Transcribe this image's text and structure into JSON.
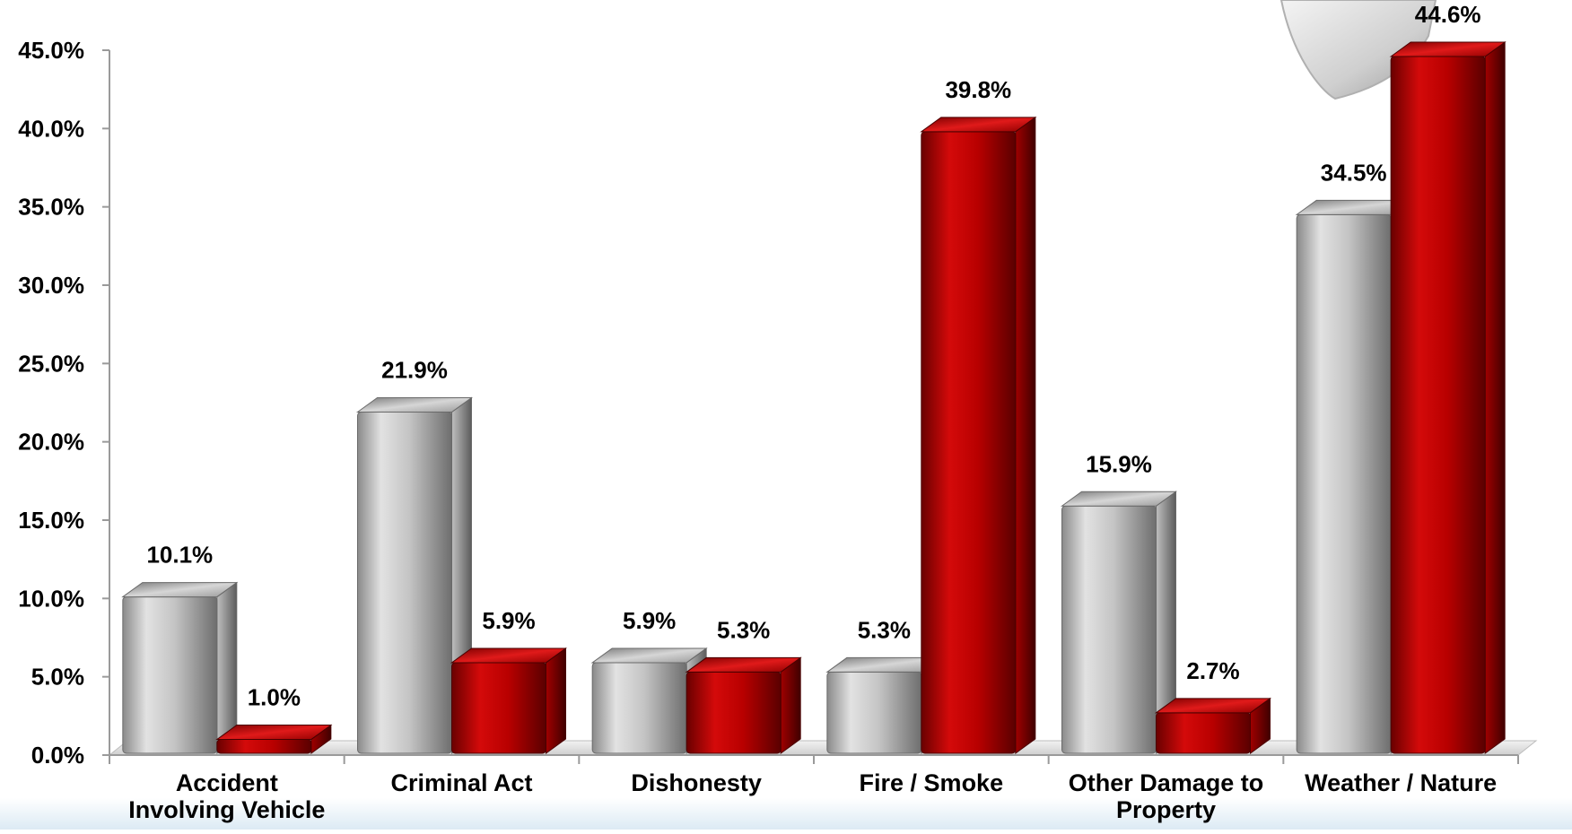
{
  "chart_data": {
    "type": "bar",
    "title": "",
    "xlabel": "",
    "ylabel": "",
    "ylim": [
      0,
      45
    ],
    "yticks": [
      "0.0%",
      "5.0%",
      "10.0%",
      "15.0%",
      "20.0%",
      "25.0%",
      "30.0%",
      "35.0%",
      "40.0%",
      "45.0%"
    ],
    "categories": [
      [
        "Accident",
        "Involving Vehicle"
      ],
      [
        "Criminal Act"
      ],
      [
        "Dishonesty"
      ],
      [
        "Fire / Smoke"
      ],
      [
        "Other Damage to",
        "Property"
      ],
      [
        "Weather / Nature"
      ]
    ],
    "series": [
      {
        "color": "#a8a8a8",
        "style": "silver",
        "values": [
          10.1,
          21.9,
          5.9,
          5.3,
          15.9,
          34.5
        ],
        "labels": [
          "10.1%",
          "21.9%",
          "5.9%",
          "5.3%",
          "15.9%",
          "34.5%"
        ]
      },
      {
        "color": "#c00000",
        "style": "red",
        "values": [
          1.0,
          5.9,
          5.3,
          39.8,
          2.7,
          44.6
        ],
        "labels": [
          "1.0%",
          "5.9%",
          "5.3%",
          "39.8%",
          "2.7%",
          "44.6%"
        ]
      }
    ],
    "grid": false,
    "legend": "none"
  }
}
